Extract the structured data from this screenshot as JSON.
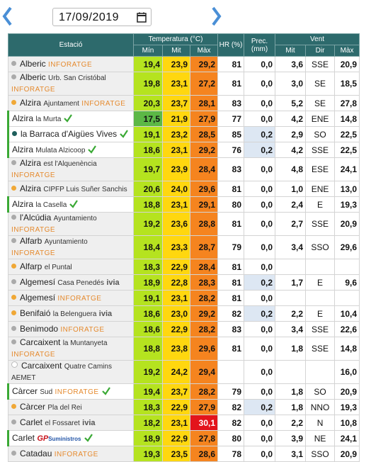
{
  "header": {
    "date": "17/09/2019"
  },
  "table": {
    "header_top": [
      "Estació",
      "Temperatura (°C)",
      "HR (%)",
      "Prec. (mm)",
      "Vent"
    ],
    "header_sub": [
      "Mín",
      "Mit",
      "Màx",
      "Mit",
      "Dir",
      "Màx"
    ],
    "colors": {
      "min": "#b5e31f",
      "mit": "#ffd70f",
      "max": "#f5841f",
      "prec_rain": "#dde7f3",
      "verified": "#3aa935"
    },
    "rows": [
      {
        "name": "Alberic",
        "tag": "INFORATGE",
        "dot": "#aaaaaa",
        "min": "19,4",
        "mit": "23,9",
        "max": "29,2",
        "hr": "81",
        "prec": "0,0",
        "wind_mit": "3,6",
        "wind_dir": "SSE",
        "wind_max": "20,9"
      },
      {
        "name": "Alberic",
        "place": "Urb. San Cristóbal",
        "tag": "INFORATGE",
        "dot": "#aaaaaa",
        "min": "19,8",
        "mit": "23,1",
        "max": "27,2",
        "hr": "81",
        "prec": "0,0",
        "wind_mit": "3,0",
        "wind_dir": "SE",
        "wind_max": "18,5"
      },
      {
        "name": "Alzira",
        "place": "Ajuntament",
        "tag": "INFORATGE",
        "dot": "#f0a836",
        "min": "20,3",
        "mit": "23,7",
        "max": "28,1",
        "hr": "83",
        "prec": "0,0",
        "wind_mit": "5,2",
        "wind_dir": "SE",
        "wind_max": "27,8"
      },
      {
        "name": "Alzira",
        "place": "la Murta",
        "verified": true,
        "min": "17,5",
        "min_color": "#5cb846",
        "mit": "21,9",
        "max": "27,9",
        "hr": "77",
        "prec": "0,0",
        "wind_mit": "4,2",
        "wind_dir": "ENE",
        "wind_max": "14,8"
      },
      {
        "name": "la Barraca d'Aigües Vives",
        "verified": true,
        "dot": "#1f5f5c",
        "min": "19,1",
        "mit": "23,2",
        "max": "28,5",
        "hr": "85",
        "prec": "0,2",
        "wind_mit": "2,9",
        "wind_dir": "SO",
        "wind_max": "22,5"
      },
      {
        "name": "Alzira",
        "place": "Mulata Alzicoop",
        "verified": true,
        "min": "18,6",
        "mit": "23,1",
        "max": "29,2",
        "hr": "76",
        "prec": "0,2",
        "wind_mit": "4,2",
        "wind_dir": "SSE",
        "wind_max": "22,5"
      },
      {
        "name": "Alzira",
        "place": "est l'Alquenència",
        "tag": "INFORATGE",
        "dot": "#aaaaaa",
        "min": "19,7",
        "mit": "23,9",
        "max": "28,4",
        "hr": "83",
        "prec": "0,0",
        "wind_mit": "4,8",
        "wind_dir": "ESE",
        "wind_max": "24,1"
      },
      {
        "name": "Alzira",
        "place": "CIPFP Luis Suñer Sanchis",
        "dot": "#f0a836",
        "min": "20,6",
        "mit": "24,0",
        "max": "29,6",
        "hr": "81",
        "prec": "0,0",
        "wind_mit": "1,0",
        "wind_dir": "ENE",
        "wind_max": "13,0"
      },
      {
        "name": "Alzira",
        "place": "la Casella",
        "verified": true,
        "min": "18,8",
        "mit": "23,1",
        "max": "29,1",
        "hr": "80",
        "prec": "0,0",
        "wind_mit": "2,4",
        "wind_dir": "E",
        "wind_max": "19,3"
      },
      {
        "name": "l'Alcúdia",
        "place": "Ayuntamiento",
        "tag": "INFORATGE",
        "dot": "#aaaaaa",
        "min": "19,2",
        "mit": "23,6",
        "max": "28,8",
        "hr": "81",
        "prec": "0,0",
        "wind_mit": "2,7",
        "wind_dir": "SSE",
        "wind_max": "20,9"
      },
      {
        "name": "Alfarb",
        "place": "Ayuntamiento",
        "tag": "INFORATGE",
        "dot": "#aaaaaa",
        "min": "18,4",
        "mit": "23,3",
        "max": "28,7",
        "hr": "79",
        "prec": "0,0",
        "wind_mit": "3,4",
        "wind_dir": "SSO",
        "wind_max": "29,6"
      },
      {
        "name": "Alfarp",
        "place": "el Puntal",
        "dot": "#f0a836",
        "min": "18,3",
        "mit": "22,9",
        "max": "28,4",
        "hr": "81",
        "prec": "0,0"
      },
      {
        "name": "Algemesí",
        "place": "Casa Penedés",
        "tag": "ivia",
        "dot": "#aaaaaa",
        "min": "18,9",
        "mit": "22,8",
        "max": "28,3",
        "hr": "81",
        "prec": "0,2",
        "wind_mit": "1,7",
        "wind_dir": "E",
        "wind_max": "9,6"
      },
      {
        "name": "Algemesí",
        "tag": "INFORATGE",
        "dot": "#f0a836",
        "min": "19,1",
        "mit": "23,1",
        "max": "28,2",
        "hr": "81",
        "prec": "0,0"
      },
      {
        "name": "Benifaió",
        "place": "la Belenguera",
        "tag": "ivia",
        "dot": "#f0a836",
        "min": "18,6",
        "mit": "23,0",
        "max": "29,2",
        "hr": "82",
        "prec": "0,2",
        "wind_mit": "2,2",
        "wind_dir": "E",
        "wind_max": "10,4"
      },
      {
        "name": "Benimodo",
        "tag": "INFORATGE",
        "dot": "#aaaaaa",
        "min": "18,6",
        "mit": "22,9",
        "max": "28,2",
        "hr": "83",
        "prec": "0,0",
        "wind_mit": "3,4",
        "wind_dir": "SSE",
        "wind_max": "22,6"
      },
      {
        "name": "Carcaixent",
        "place": "la Muntanyeta",
        "tag": "INFORATGE",
        "dot": "#aaaaaa",
        "min": "18,8",
        "mit": "23,8",
        "max": "29,6",
        "hr": "81",
        "prec": "0,0",
        "wind_mit": "1,8",
        "wind_dir": "SSE",
        "wind_max": "14,8"
      },
      {
        "name": "Carcaixent",
        "place": "Quatre Camins",
        "tag": "AEMET",
        "dot": "#ffffff",
        "min": "19,2",
        "mit": "24,2",
        "max": "29,4",
        "prec": "0,0",
        "wind_max": "16,0"
      },
      {
        "name": "Càrcer",
        "place": "Sud",
        "tag": "INFORATGE",
        "verified": true,
        "min": "19,4",
        "mit": "23,7",
        "max": "28,2",
        "hr": "79",
        "prec": "0,0",
        "wind_mit": "1,8",
        "wind_dir": "SO",
        "wind_max": "20,9"
      },
      {
        "name": "Càrcer",
        "place": "Pla del Rei",
        "dot": "#f0a836",
        "min": "18,3",
        "mit": "22,9",
        "max": "27,9",
        "hr": "82",
        "prec": "0,2",
        "wind_mit": "1,8",
        "wind_dir": "NNO",
        "wind_max": "19,3"
      },
      {
        "name": "Carlet",
        "place": "el Fossaret",
        "tag": "ivia",
        "dot": "#aaaaaa",
        "min": "18,2",
        "mit": "23,1",
        "max": "30,1",
        "max_color": "#e3141c",
        "hr": "82",
        "prec": "0,0",
        "wind_mit": "2,2",
        "wind_dir": "N",
        "wind_max": "10,8"
      },
      {
        "name": "Carlet",
        "tag": "GP",
        "tag2": "Suministros",
        "verified": true,
        "min": "18,9",
        "mit": "22,9",
        "max": "27,8",
        "hr": "80",
        "prec": "0,0",
        "wind_mit": "3,9",
        "wind_dir": "NE",
        "wind_max": "24,1"
      },
      {
        "name": "Catadau",
        "tag": "INFORATGE",
        "dot": "#aaaaaa",
        "min": "19,3",
        "mit": "23,5",
        "max": "28,6",
        "hr": "78",
        "prec": "0,0",
        "wind_mit": "3,1",
        "wind_dir": "SSO",
        "wind_max": "20,9"
      }
    ]
  }
}
